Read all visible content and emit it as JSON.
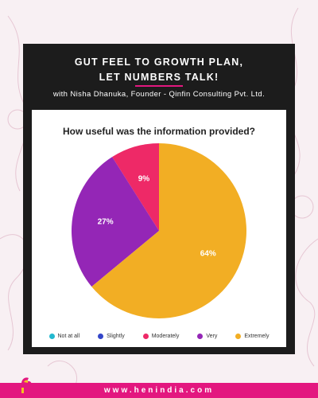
{
  "header": {
    "title_line1": "GUT FEEL TO GROWTH PLAN,",
    "title_line2": "LET NUMBERS TALK!",
    "subtitle": "with Nisha Dhanuka, Founder - Qinfin Consulting Pvt. Ltd."
  },
  "chart_data": {
    "type": "pie",
    "title": "How useful was the information provided?",
    "categories": [
      "Not at all",
      "Slightly",
      "Moderately",
      "Very",
      "Extremely"
    ],
    "values": [
      0,
      0,
      9,
      27,
      64
    ],
    "value_labels": [
      "",
      "",
      "9%",
      "27%",
      "64%"
    ],
    "colors": [
      "#22b8cf",
      "#3446c9",
      "#ee2967",
      "#9426b6",
      "#f2ae24"
    ],
    "start_angle_deg": 0,
    "direction": "counterclockwise",
    "legend_position": "bottom"
  },
  "footer": {
    "url": "www.henindia.com",
    "accent": "#e3177f"
  },
  "theme": {
    "card_bg": "#1c1c1c",
    "page_bg": "#f8f0f3",
    "logo_icon": "hen-logo-icon"
  }
}
